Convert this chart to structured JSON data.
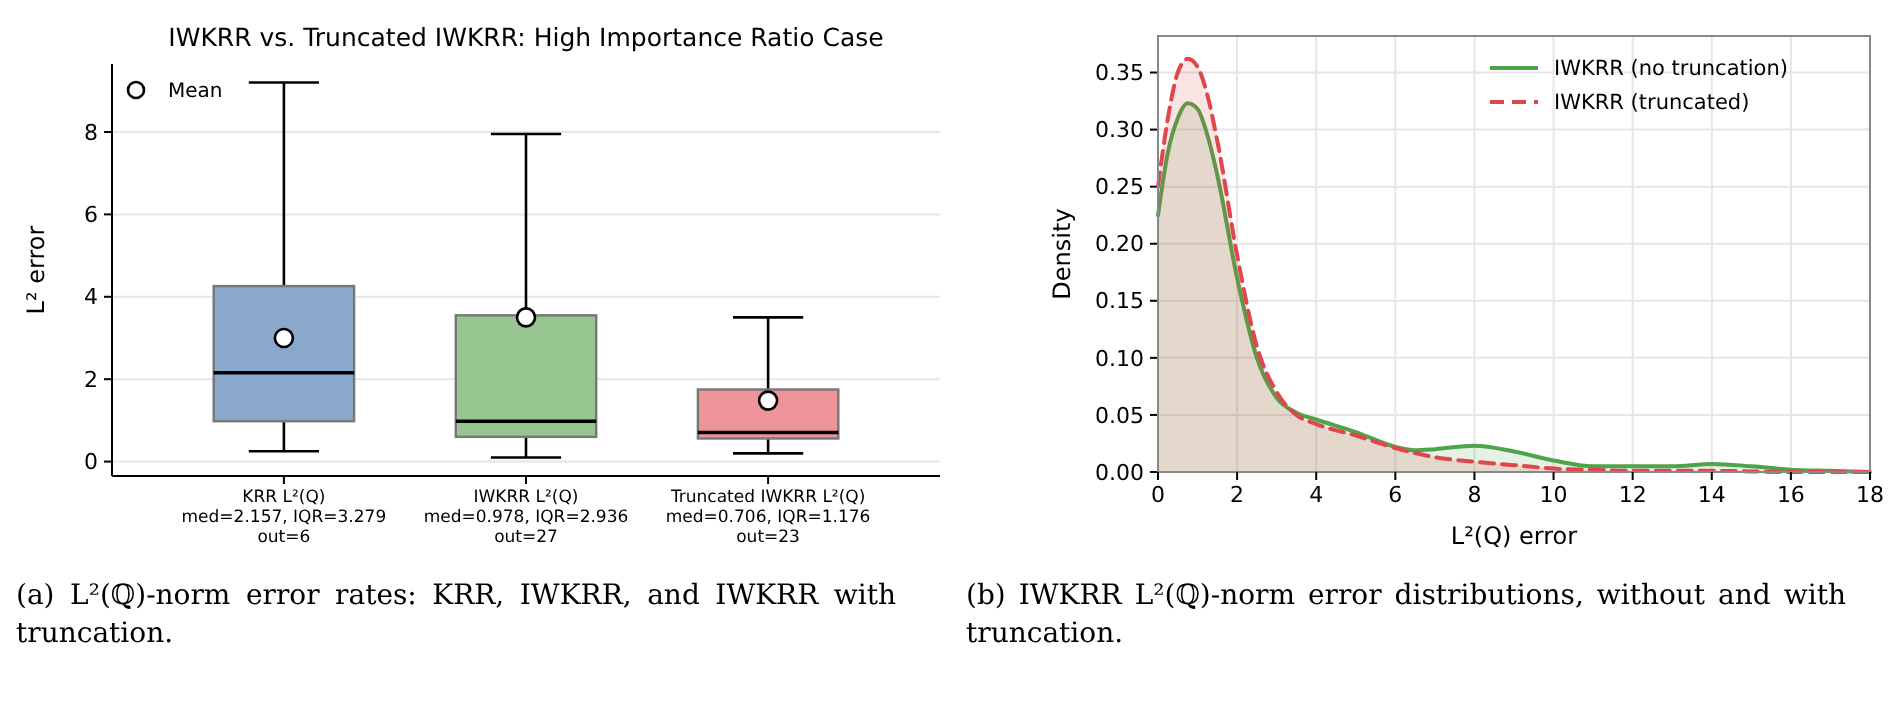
{
  "chart_data": [
    {
      "type": "box",
      "title": "IWKRR vs. Truncated IWKRR: High Importance Ratio Case",
      "ylabel": "L² error",
      "categories": [
        "KRR L²(Q)\nmed=2.157, IQR=3.279\nout=6",
        "IWKRR L²(Q)\nmed=0.978, IQR=2.936\nout=27",
        "Truncated IWKRR L²(Q)\nmed=0.706, IQR=1.176\nout=23"
      ],
      "boxes": [
        {
          "low": 0.25,
          "q1": 0.98,
          "median": 2.157,
          "q3": 4.26,
          "high": 9.2
        },
        {
          "low": 0.1,
          "q1": 0.6,
          "median": 0.978,
          "q3": 3.55,
          "high": 7.95
        },
        {
          "low": 0.2,
          "q1": 0.56,
          "median": 0.706,
          "q3": 1.75,
          "high": 3.5
        }
      ],
      "colors": [
        "#89a8cc",
        "#97c58f",
        "#ec9497"
      ],
      "series": [
        {
          "type": "scatter",
          "name": "Mean",
          "color": "#ffffff",
          "x": [
            "KRR L²(Q)\nmed=2.157, IQR=3.279\nout=6",
            "IWKRR L²(Q)\nmed=0.978, IQR=2.936\nout=27",
            "Truncated IWKRR L²(Q)\nmed=0.706, IQR=1.176\nout=23"
          ],
          "values": [
            3.0,
            3.5,
            1.48
          ]
        }
      ],
      "marker": "circle",
      "legend": "top left",
      "grid": "y",
      "ylim": [
        -0.35,
        9.65
      ],
      "yticks": [
        0,
        2,
        4,
        6,
        8
      ],
      "annotations": [
        "(a) L²(ℚ)-norm error rates: KRR, IWKRR, and IWKRR with truncation."
      ]
    },
    {
      "type": "area",
      "xlabel": "L²(Q) error",
      "ylabel": "Density",
      "xlim": [
        0,
        18
      ],
      "xticks": [
        0,
        2,
        4,
        6,
        8,
        10,
        12,
        14,
        16,
        18
      ],
      "ylim": [
        0,
        0.382
      ],
      "yticks": [
        {
          "value": 0,
          "label": "0.00"
        },
        {
          "value": 0.05,
          "label": "0.05"
        },
        {
          "value": 0.1,
          "label": "0.10"
        },
        {
          "value": 0.15,
          "label": "0.15"
        },
        {
          "value": 0.2,
          "label": "0.20"
        },
        {
          "value": 0.25,
          "label": "0.25"
        },
        {
          "value": 0.3,
          "label": "0.30"
        },
        {
          "value": 0.35,
          "label": "0.35"
        }
      ],
      "grid": true,
      "legend": "top right",
      "series": [
        {
          "name": "IWKRR (no truncation)",
          "color": "#4fa34a",
          "line_style": "solid",
          "x": [
            0,
            0.25,
            0.5,
            0.75,
            1,
            1.25,
            1.5,
            2,
            2.5,
            3,
            3.5,
            4,
            5,
            6,
            6.5,
            7,
            8,
            9,
            10,
            11,
            12,
            13,
            14,
            15,
            16,
            17,
            18
          ],
          "values": [
            0.225,
            0.28,
            0.31,
            0.323,
            0.318,
            0.295,
            0.26,
            0.17,
            0.1,
            0.065,
            0.052,
            0.046,
            0.035,
            0.022,
            0.019,
            0.02,
            0.023,
            0.018,
            0.01,
            0.005,
            0.005,
            0.005,
            0.007,
            0.005,
            0.002,
            0.001,
            0
          ]
        },
        {
          "name": "IWKRR (truncated)",
          "color": "#e0474c",
          "line_style": "dashed",
          "x": [
            0,
            0.25,
            0.5,
            0.75,
            1,
            1.25,
            1.5,
            2,
            2.5,
            3,
            3.5,
            4,
            5,
            6,
            7,
            8,
            9,
            10,
            11,
            12,
            14,
            16,
            18
          ],
          "values": [
            0.25,
            0.31,
            0.35,
            0.362,
            0.355,
            0.33,
            0.29,
            0.19,
            0.11,
            0.07,
            0.05,
            0.042,
            0.032,
            0.021,
            0.013,
            0.009,
            0.006,
            0.003,
            0.002,
            0.001,
            0.001,
            0,
            0
          ]
        }
      ],
      "annotations": [
        "(b) IWKRR L²(ℚ)-norm error distributions, without and with truncation."
      ]
    }
  ]
}
